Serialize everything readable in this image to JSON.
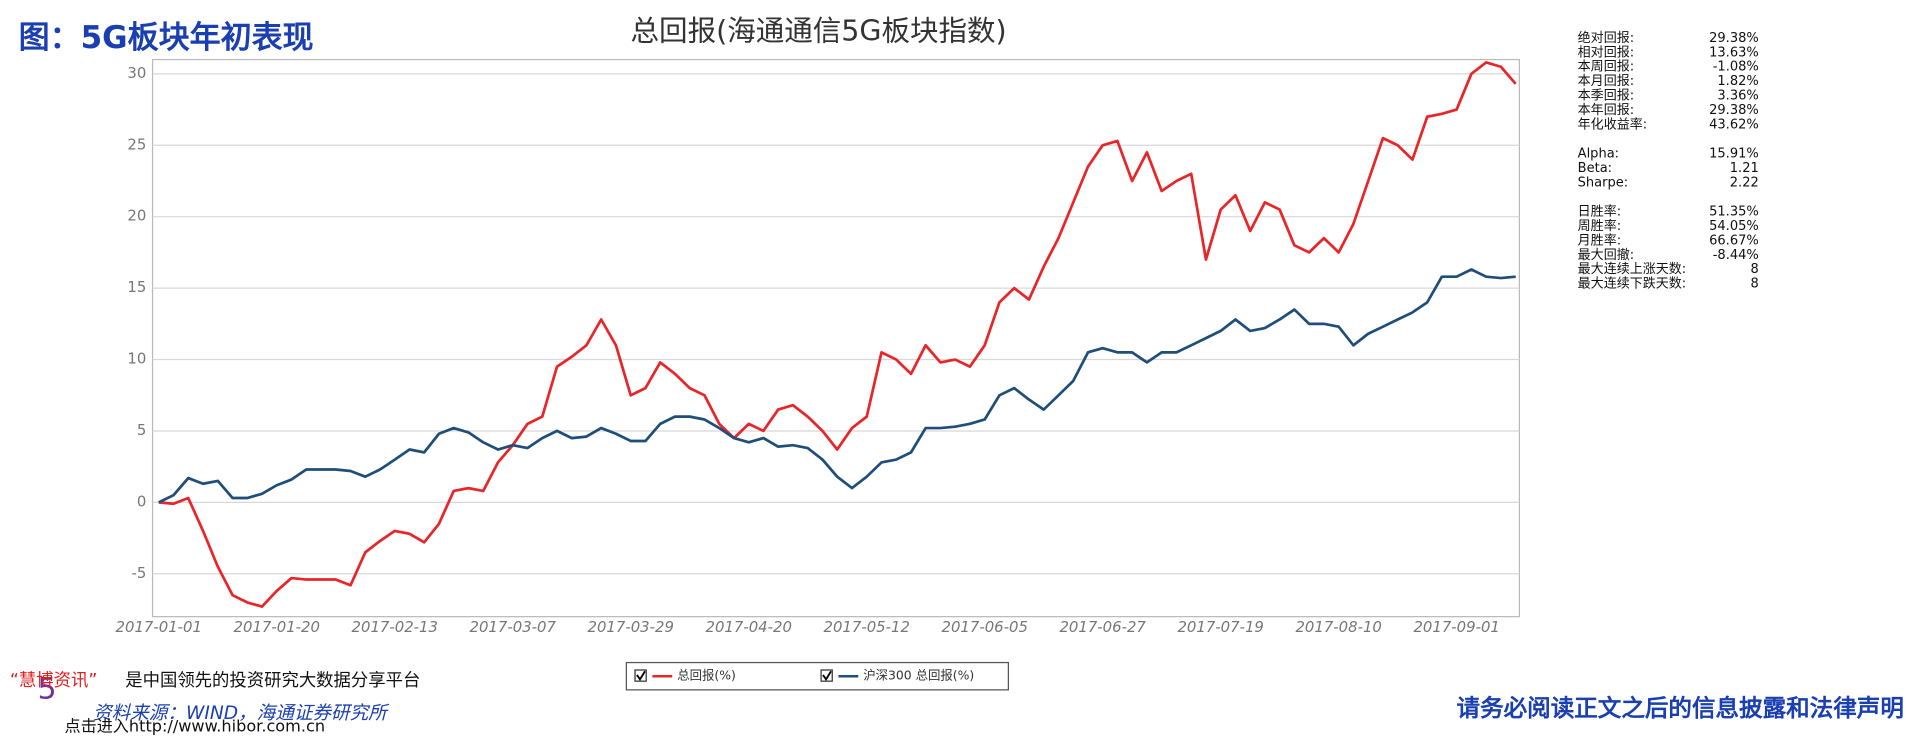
{
  "header": {
    "title": "图：5G板块年初表现"
  },
  "chart_data": {
    "type": "line",
    "title": "总回报(海通通信5G板块指数)",
    "categories": [
      "2017-01-01",
      null,
      null,
      null,
      null,
      null,
      null,
      null,
      "2017-01-20",
      null,
      null,
      null,
      null,
      null,
      null,
      null,
      "2017-02-13",
      null,
      null,
      null,
      null,
      null,
      null,
      null,
      "2017-03-07",
      null,
      null,
      null,
      null,
      null,
      null,
      null,
      "2017-03-29",
      null,
      null,
      null,
      null,
      null,
      null,
      null,
      "2017-04-20",
      null,
      null,
      null,
      null,
      null,
      null,
      null,
      "2017-05-12",
      null,
      null,
      null,
      null,
      null,
      null,
      null,
      "2017-06-05",
      null,
      null,
      null,
      null,
      null,
      null,
      null,
      "2017-06-27",
      null,
      null,
      null,
      null,
      null,
      null,
      null,
      "2017-07-19",
      null,
      null,
      null,
      null,
      null,
      null,
      null,
      "2017-08-10",
      null,
      null,
      null,
      null,
      null,
      null,
      null,
      "2017-09-01",
      null,
      null,
      null,
      null
    ],
    "series": [
      {
        "name": "总回报(%)",
        "color": "#e8262a",
        "values": [
          0,
          -0.1,
          0.3,
          -2,
          -4.5,
          -6.5,
          -7,
          -7.3,
          -6.2,
          -5.3,
          -5.4,
          -5.4,
          -5.4,
          -5.8,
          -3.5,
          -2.7,
          -2,
          -2.2,
          -2.8,
          -1.5,
          0.8,
          1,
          0.8,
          2.8,
          4,
          5.5,
          6,
          9.5,
          10.2,
          11,
          12.8,
          11,
          7.5,
          8,
          9.8,
          9,
          8,
          7.5,
          5.5,
          4.5,
          5.5,
          5,
          6.5,
          6.8,
          6,
          5,
          3.7,
          5.2,
          6,
          10.5,
          10,
          9,
          11,
          9.8,
          10,
          9.5,
          11,
          14,
          15,
          14.2,
          16.5,
          18.5,
          21,
          23.5,
          25,
          25.3,
          22.5,
          24.5,
          21.8,
          22.5,
          23,
          17,
          20.5,
          21.5,
          19,
          21,
          20.5,
          18,
          17.5,
          18.5,
          17.5,
          19.5,
          22.5,
          25.5,
          25,
          24,
          27,
          27.2,
          27.5,
          30,
          30.8,
          30.5,
          29.3
        ]
      },
      {
        "name": "沪深300 总回报(%)",
        "color": "#1f4e79",
        "values": [
          0,
          0.5,
          1.7,
          1.3,
          1.5,
          0.3,
          0.3,
          0.6,
          1.2,
          1.6,
          2.3,
          2.3,
          2.3,
          2.2,
          1.8,
          2.3,
          3,
          3.7,
          3.5,
          4.8,
          5.2,
          4.9,
          4.2,
          3.7,
          4,
          3.8,
          4.5,
          5,
          4.5,
          4.6,
          5.2,
          4.8,
          4.3,
          4.3,
          5.5,
          6,
          6,
          5.8,
          5.2,
          4.5,
          4.2,
          4.5,
          3.9,
          4,
          3.8,
          3,
          1.8,
          1,
          1.8,
          2.8,
          3,
          3.5,
          5.2,
          5.2,
          5.3,
          5.5,
          5.8,
          7.5,
          8,
          7.2,
          6.5,
          7.5,
          8.5,
          10.5,
          10.8,
          10.5,
          10.5,
          9.8,
          10.5,
          10.5,
          11,
          11.5,
          12,
          12.8,
          12,
          12.2,
          12.8,
          13.5,
          12.5,
          12.5,
          12.3,
          11,
          11.8,
          12.3,
          12.8,
          13.3,
          14,
          15.8,
          15.8,
          16.3,
          15.8,
          15.7,
          15.8
        ]
      }
    ],
    "ylim": [
      -8,
      31
    ],
    "yticks": [
      -5,
      0,
      5,
      10,
      15,
      20,
      25,
      30
    ],
    "grid": true,
    "legend": "bottom"
  },
  "stats": [
    {
      "label": "绝对回报:",
      "value": "29.38%"
    },
    {
      "label": "相对回报:",
      "value": "13.63%"
    },
    {
      "label": "本周回报:",
      "value": "-1.08%"
    },
    {
      "label": "本月回报:",
      "value": "1.82%"
    },
    {
      "label": "本季回报:",
      "value": "3.36%"
    },
    {
      "label": "本年回报:",
      "value": "29.38%"
    },
    {
      "label": "年化收益率:",
      "value": "43.62%"
    },
    {
      "label": "Alpha:",
      "value": "15.91%"
    },
    {
      "label": "Beta:",
      "value": "1.21"
    },
    {
      "label": "Sharpe:",
      "value": "2.22"
    },
    {
      "label": "日胜率:",
      "value": "51.35%"
    },
    {
      "label": "周胜率:",
      "value": "54.05%"
    },
    {
      "label": "月胜率:",
      "value": "66.67%"
    },
    {
      "label": "最大回撤:",
      "value": "-8.44%"
    },
    {
      "label": "最大连续上涨天数:",
      "value": "8"
    },
    {
      "label": "最大连续下跌天数:",
      "value": "8"
    }
  ],
  "footer": {
    "brand": "“慧博资讯”",
    "slogan": "是中国领先的投资研究大数据分享平台",
    "source": "资料来源：WIND，海通证券研究所",
    "link": "点击进入http://www.hibor.com.cn",
    "page": "5",
    "disclaimer": "请务必阅读正文之后的信息披露和法律声明"
  }
}
